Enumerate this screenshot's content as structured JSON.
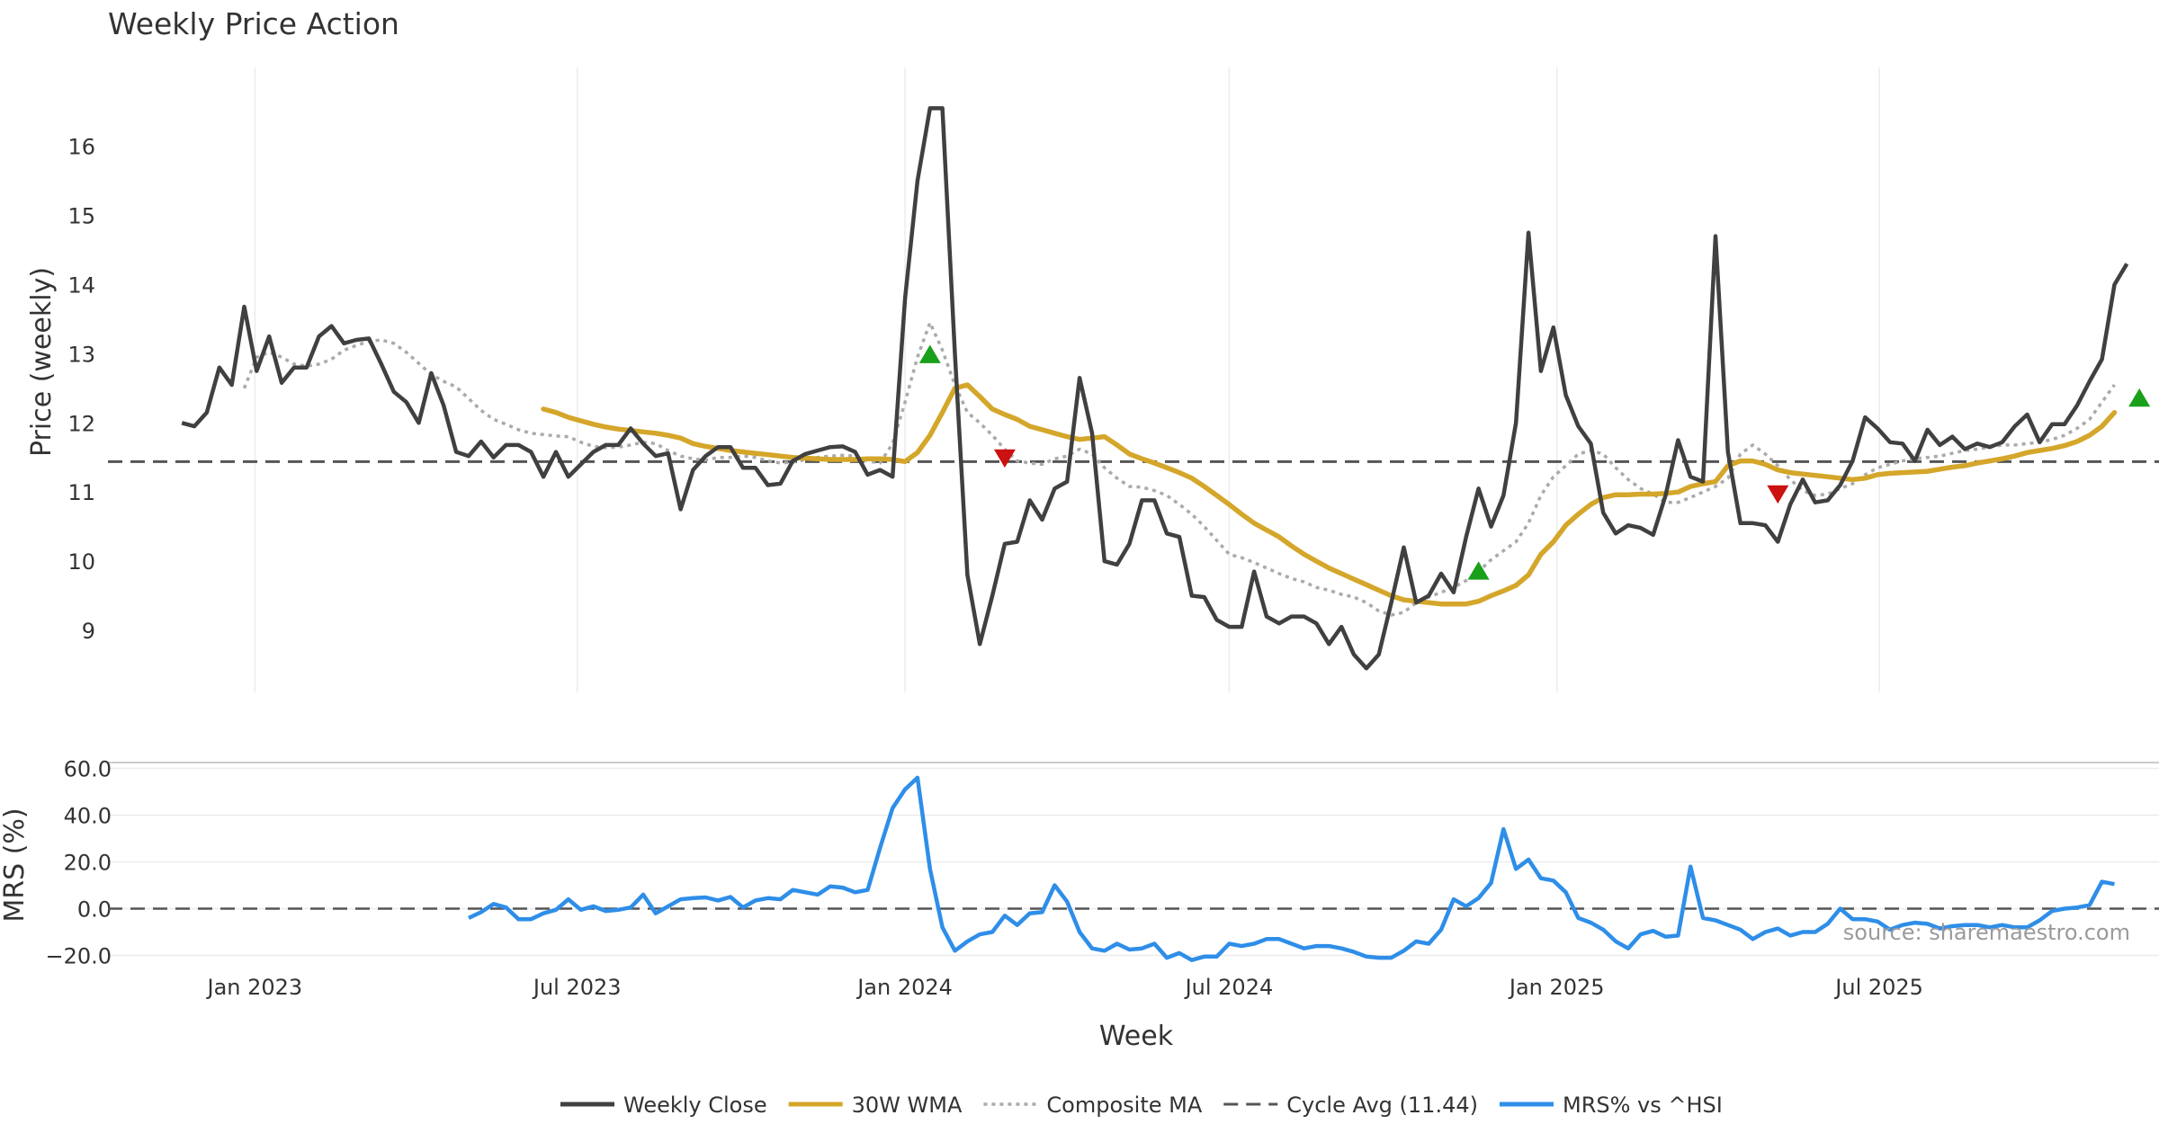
{
  "title": "Weekly Price Action",
  "source_label": "source: sharemaestro.com",
  "colors": {
    "close": "#404040",
    "wma": "#d4a62a",
    "composite": "#aaaaaa",
    "cycle": "#555555",
    "mrs": "#2e8ee8",
    "buy": "#1aa01a",
    "sell": "#cc1111",
    "grid": "#ececec"
  },
  "chart_data": [
    {
      "type": "line",
      "panel": "price",
      "ylabel": "Price (weekly)",
      "ylim": [
        8.0,
        17.0
      ],
      "yticks": [
        9,
        10,
        11,
        12,
        13,
        14,
        15,
        16
      ],
      "grid": "vertical",
      "x_start": "2022-11-21",
      "x_step_days": 7,
      "series": [
        {
          "name": "Weekly Close",
          "values": [
            12.0,
            11.95,
            12.15,
            12.8,
            12.55,
            13.68,
            12.75,
            13.25,
            12.58,
            12.8,
            12.8,
            13.25,
            13.4,
            13.15,
            13.2,
            13.22,
            12.85,
            12.45,
            12.3,
            12.0,
            12.72,
            12.25,
            11.58,
            11.52,
            11.73,
            11.5,
            11.68,
            11.68,
            11.58,
            11.22,
            11.58,
            11.22,
            11.4,
            11.58,
            11.68,
            11.68,
            11.92,
            11.7,
            11.52,
            11.56,
            10.75,
            11.32,
            11.52,
            11.65,
            11.65,
            11.35,
            11.35,
            11.1,
            11.12,
            11.45,
            11.55,
            11.6,
            11.65,
            11.66,
            11.58,
            11.25,
            11.32,
            11.22,
            13.8,
            15.5,
            16.55,
            16.55,
            13.0,
            9.8,
            8.8,
            9.5,
            10.25,
            10.28,
            10.88,
            10.6,
            11.05,
            11.15,
            12.65,
            11.85,
            10.0,
            9.95,
            10.25,
            10.88,
            10.88,
            10.4,
            10.35,
            9.5,
            9.48,
            9.15,
            9.05,
            9.05,
            9.85,
            9.2,
            9.1,
            9.2,
            9.2,
            9.1,
            8.8,
            9.05,
            8.65,
            8.45,
            8.65,
            9.4,
            10.2,
            9.4,
            9.5,
            9.82,
            9.55,
            10.35,
            11.05,
            10.5,
            10.95,
            12.0,
            14.75,
            12.75,
            13.38,
            12.4,
            11.95,
            11.7,
            10.7,
            10.4,
            10.52,
            10.48,
            10.38,
            10.95,
            11.75,
            11.22,
            11.15,
            14.7,
            11.58,
            10.55,
            10.55,
            10.52,
            10.28,
            10.82,
            11.18,
            10.85,
            10.88,
            11.1,
            11.45,
            12.08,
            11.92,
            11.72,
            11.7,
            11.45,
            11.9,
            11.68,
            11.8,
            11.62,
            11.7,
            11.65,
            11.72,
            11.95,
            12.12,
            11.72,
            11.98,
            11.98,
            12.25,
            12.6,
            12.92,
            14.0,
            14.3
          ]
        },
        {
          "name": "30W WMA",
          "start_index": 29,
          "values": [
            12.2,
            12.15,
            12.08,
            12.03,
            11.98,
            11.94,
            11.91,
            11.89,
            11.87,
            11.85,
            11.82,
            11.78,
            11.7,
            11.66,
            11.63,
            11.6,
            11.58,
            11.56,
            11.54,
            11.52,
            11.5,
            11.49,
            11.48,
            11.47,
            11.47,
            11.47,
            11.48,
            11.48,
            11.47,
            11.44,
            11.57,
            11.82,
            12.15,
            12.5,
            12.55,
            12.38,
            12.2,
            12.12,
            12.05,
            11.95,
            11.9,
            11.85,
            11.8,
            11.76,
            11.78,
            11.8,
            11.68,
            11.55,
            11.48,
            11.42,
            11.35,
            11.28,
            11.2,
            11.08,
            10.95,
            10.82,
            10.68,
            10.55,
            10.45,
            10.35,
            10.22,
            10.1,
            10.0,
            9.9,
            9.82,
            9.74,
            9.66,
            9.58,
            9.5,
            9.44,
            9.42,
            9.4,
            9.38,
            9.38,
            9.38,
            9.42,
            9.5,
            9.57,
            9.65,
            9.8,
            10.1,
            10.28,
            10.52,
            10.68,
            10.82,
            10.92,
            10.96,
            10.96,
            10.97,
            10.97,
            10.98,
            11.0,
            11.08,
            11.12,
            11.15,
            11.38,
            11.45,
            11.45,
            11.4,
            11.32,
            11.28,
            11.26,
            11.24,
            11.22,
            11.2,
            11.18,
            11.2,
            11.25,
            11.27,
            11.28,
            11.29,
            11.3,
            11.33,
            11.36,
            11.38,
            11.42,
            11.45,
            11.48,
            11.52,
            11.57,
            11.6,
            11.63,
            11.67,
            11.73,
            11.82,
            11.95,
            12.15
          ]
        },
        {
          "name": "Composite MA",
          "start_index": 5,
          "values": [
            12.5,
            12.95,
            13.02,
            12.95,
            12.85,
            12.82,
            12.85,
            12.92,
            13.05,
            13.12,
            13.18,
            13.2,
            13.15,
            13.02,
            12.86,
            12.7,
            12.6,
            12.52,
            12.35,
            12.18,
            12.05,
            11.98,
            11.9,
            11.85,
            11.83,
            11.81,
            11.8,
            11.72,
            11.66,
            11.64,
            11.65,
            11.68,
            11.72,
            11.7,
            11.6,
            11.52,
            11.48,
            11.46,
            11.5,
            11.5,
            11.52,
            11.5,
            11.45,
            11.42,
            11.43,
            11.47,
            11.5,
            11.52,
            11.53,
            11.52,
            11.45,
            11.42,
            11.7,
            12.3,
            12.95,
            13.45,
            13.05,
            12.55,
            12.15,
            12.0,
            11.82,
            11.62,
            11.45,
            11.42,
            11.4,
            11.48,
            11.52,
            11.62,
            11.55,
            11.35,
            11.2,
            11.08,
            11.07,
            11.02,
            10.95,
            10.82,
            10.68,
            10.5,
            10.3,
            10.1,
            10.05,
            9.98,
            9.9,
            9.82,
            9.75,
            9.7,
            9.62,
            9.58,
            9.52,
            9.48,
            9.4,
            9.28,
            9.22,
            9.26,
            9.4,
            9.48,
            9.55,
            9.62,
            9.72,
            9.85,
            10.02,
            10.15,
            10.28,
            10.55,
            10.95,
            11.22,
            11.38,
            11.55,
            11.6,
            11.55,
            11.35,
            11.18,
            11.05,
            10.97,
            10.85,
            10.85,
            10.92,
            11.0,
            11.08,
            11.2,
            11.55,
            11.68,
            11.55,
            11.38,
            11.18,
            11.02,
            10.95,
            10.97,
            11.05,
            11.12,
            11.25,
            11.35,
            11.4,
            11.45,
            11.48,
            11.5,
            11.52,
            11.56,
            11.6,
            11.62,
            11.65,
            11.68,
            11.68,
            11.7,
            11.72,
            11.76,
            11.82,
            11.92,
            12.05,
            12.3,
            12.55
          ]
        },
        {
          "name": "Cycle Avg (11.44)",
          "constant": 11.44
        }
      ],
      "markers": [
        {
          "kind": "buy",
          "index": 60,
          "y": 12.98
        },
        {
          "kind": "sell",
          "index": 66,
          "y": 11.5
        },
        {
          "kind": "buy",
          "index": 104,
          "y": 9.85
        },
        {
          "kind": "sell",
          "index": 128,
          "y": 10.98
        },
        {
          "kind": "buy",
          "index": 157,
          "y": 12.35
        }
      ]
    },
    {
      "type": "line",
      "panel": "mrs",
      "ylabel": "MRS (%)",
      "xlabel": "Week",
      "ylim": [
        -22,
        62
      ],
      "yticks": [
        -20.0,
        0.0,
        20.0,
        40.0,
        60.0
      ],
      "ytick_labels": [
        "−20.0",
        "0.0",
        "20.0",
        "40.0",
        "60.0"
      ],
      "grid": "horizontal",
      "xtick_labels": [
        "Jan 2023",
        "Jul 2023",
        "Jan 2024",
        "Jul 2024",
        "Jan 2025",
        "Jul 2025"
      ],
      "xtick_dates": [
        "2023-01-01",
        "2023-07-01",
        "2024-01-01",
        "2024-07-01",
        "2025-01-01",
        "2025-07-01"
      ],
      "series": [
        {
          "name": "MRS% vs ^HSI",
          "start_index": 23,
          "values": [
            -4.0,
            -1.5,
            2.0,
            0.5,
            -4.5,
            -4.5,
            -2.0,
            -0.5,
            4.0,
            -0.5,
            1.0,
            -1.0,
            -0.5,
            0.5,
            6.0,
            -2.0,
            1.0,
            4.0,
            4.5,
            4.8,
            3.5,
            5.0,
            0.5,
            3.5,
            4.5,
            4.0,
            8.0,
            7.0,
            6.0,
            9.5,
            9.0,
            7.0,
            8.0,
            26.0,
            43.0,
            51.0,
            56.0,
            17.0,
            -8.0,
            -18.0,
            -14.0,
            -11.0,
            -10.0,
            -3.0,
            -7.0,
            -2.0,
            -1.5,
            10.0,
            3.0,
            -10.0,
            -17.0,
            -18.0,
            -15.0,
            -17.5,
            -17.0,
            -15.0,
            -21.0,
            -19.0,
            -22.0,
            -20.5,
            -20.5,
            -15.0,
            -16.0,
            -15.0,
            -13.0,
            -13.0,
            -15.0,
            -17.0,
            -16.0,
            -16.0,
            -17.0,
            -18.5,
            -20.5,
            -21.0,
            -21.0,
            -18.0,
            -14.0,
            -15.0,
            -9.0,
            4.0,
            1.0,
            4.5,
            11.0,
            34.0,
            17.0,
            21.0,
            13.0,
            12.0,
            7.0,
            -4.0,
            -6.0,
            -9.0,
            -14.0,
            -17.0,
            -11.0,
            -9.5,
            -12.0,
            -11.5,
            18.0,
            -4.0,
            -5.0,
            -7.0,
            -9.0,
            -13.0,
            -10.0,
            -8.5,
            -11.5,
            -10.0,
            -10.0,
            -6.5,
            0.0,
            -4.5,
            -4.5,
            -5.5,
            -9.0,
            -7.0,
            -6.0,
            -6.5,
            -8.5,
            -7.5,
            -7.0,
            -7.0,
            -8.0,
            -7.0,
            -8.0,
            -8.0,
            -5.0,
            -1.0,
            0.0,
            0.5,
            1.5,
            11.5,
            10.5
          ]
        },
        {
          "name": "zero-line",
          "constant": 0
        }
      ]
    }
  ],
  "legend": [
    {
      "label": "Weekly Close",
      "style": "solid",
      "color_key": "close"
    },
    {
      "label": "30W WMA",
      "style": "solid",
      "color_key": "wma"
    },
    {
      "label": "Composite MA",
      "style": "dotted",
      "color_key": "composite"
    },
    {
      "label": "Cycle Avg (11.44)",
      "style": "dashed",
      "color_key": "cycle"
    },
    {
      "label": "MRS% vs ^HSI",
      "style": "solid",
      "color_key": "mrs"
    }
  ]
}
